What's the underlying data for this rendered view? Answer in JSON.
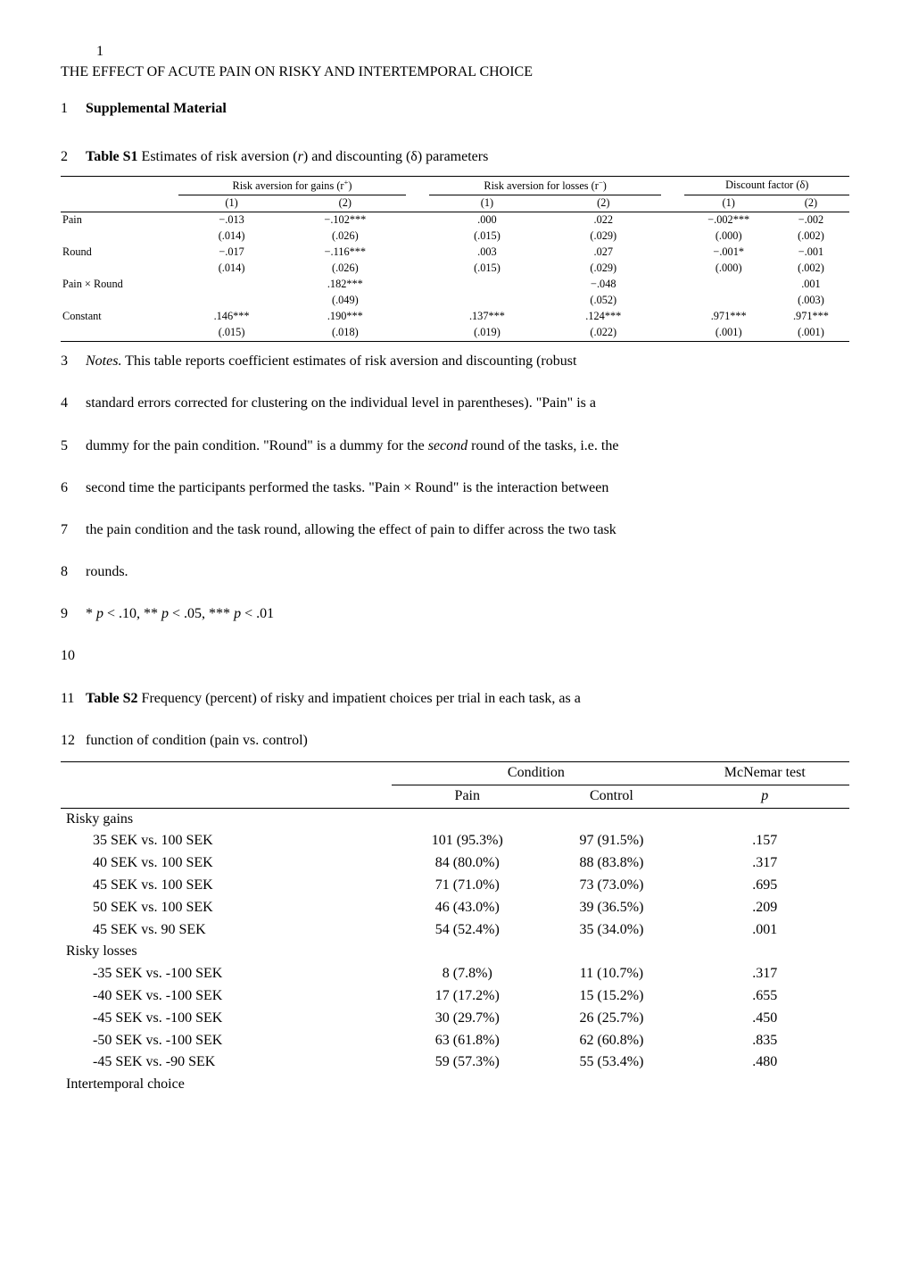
{
  "running_head": {
    "page_number": "1",
    "title": "THE EFFECT OF ACUTE PAIN ON RISKY AND INTERTEMPORAL CHOICE"
  },
  "heading": "Supplemental Material",
  "tableS1": {
    "caption_prefix": "Table S1",
    "caption_rest_a": " Estimates of risk aversion (",
    "caption_r": "r",
    "caption_rest_b": ") and discounting (δ) parameters",
    "group_headers": {
      "gains": "Risk aversion for gains (r",
      "gains_sup": "+",
      "gains_close": ")",
      "losses": "Risk aversion for losses (r",
      "losses_sup": "−",
      "losses_close": ")",
      "discount": "Discount factor (δ)"
    },
    "sub_headers": [
      "(1)",
      "(2)",
      "(1)",
      "(2)",
      "(1)",
      "(2)"
    ],
    "rows": [
      {
        "label": "Pain",
        "c": [
          "−.013",
          "−.102***",
          ".000",
          ".022",
          "−.002***",
          "−.002"
        ]
      },
      {
        "label": "",
        "c": [
          "(.014)",
          "(.026)",
          "(.015)",
          "(.029)",
          "(.000)",
          "(.002)"
        ]
      },
      {
        "label": "Round",
        "c": [
          "−.017",
          "−.116***",
          ".003",
          ".027",
          "−.001*",
          "−.001"
        ]
      },
      {
        "label": "",
        "c": [
          "(.014)",
          "(.026)",
          "(.015)",
          "(.029)",
          "(.000)",
          "(.002)"
        ]
      },
      {
        "label": "Pain × Round",
        "c": [
          "",
          ".182***",
          "",
          "−.048",
          "",
          ".001"
        ]
      },
      {
        "label": "",
        "c": [
          "",
          "(.049)",
          "",
          "(.052)",
          "",
          "(.003)"
        ]
      },
      {
        "label": "Constant",
        "c": [
          ".146***",
          ".190***",
          ".137***",
          ".124***",
          ".971***",
          ".971***"
        ]
      },
      {
        "label": "",
        "c": [
          "(.015)",
          "(.018)",
          "(.019)",
          "(.022)",
          "(.001)",
          "(.001)"
        ]
      }
    ]
  },
  "notes": {
    "l3a": "Notes.",
    "l3b": " This table reports coefficient estimates of risk aversion and discounting (robust",
    "l4": "standard errors corrected for clustering on the individual level in parentheses). \"Pain\" is a",
    "l5a": "dummy for the pain condition. \"Round\" is a dummy for the ",
    "l5b": "second",
    "l5c": " round of the tasks, i.e. the",
    "l6": "second time the participants performed the tasks. \"Pain × Round\" is the interaction between",
    "l7": "the pain condition and the task round, allowing the effect of pain to differ across the two task",
    "l8": "rounds.",
    "l9a": "* ",
    "l9b": "p",
    "l9c": " < .10, ** ",
    "l9d": "p",
    "l9e": " < .05, *** ",
    "l9f": "p",
    "l9g": " < .01"
  },
  "tableS2caption": {
    "l11_prefix": "Table S2",
    "l11_rest": " Frequency (percent) of risky and impatient choices per trial in each task, as a",
    "l12": "function of condition (pain vs. control)"
  },
  "tableS2": {
    "headers": {
      "condition": "Condition",
      "mcnemar": "McNemar test",
      "pain": "Pain",
      "control": "Control",
      "p": "p"
    },
    "sections": [
      {
        "label": "Risky gains",
        "rows": [
          {
            "label": "35 SEK vs. 100 SEK",
            "pain": "101 (95.3%)",
            "control": "97 (91.5%)",
            "p": ".157"
          },
          {
            "label": "40 SEK vs. 100 SEK",
            "pain": "84 (80.0%)",
            "control": "88 (83.8%)",
            "p": ".317"
          },
          {
            "label": "45 SEK vs. 100 SEK",
            "pain": "71 (71.0%)",
            "control": "73 (73.0%)",
            "p": ".695"
          },
          {
            "label": "50 SEK vs. 100 SEK",
            "pain": "46 (43.0%)",
            "control": "39 (36.5%)",
            "p": ".209"
          },
          {
            "label": "45 SEK vs. 90 SEK",
            "pain": "54 (52.4%)",
            "control": "35 (34.0%)",
            "p": ".001"
          }
        ]
      },
      {
        "label": "Risky losses",
        "rows": [
          {
            "label": "-35 SEK vs. -100 SEK",
            "pain": "8 (7.8%)",
            "control": "11 (10.7%)",
            "p": ".317"
          },
          {
            "label": "-40 SEK vs. -100 SEK",
            "pain": "17 (17.2%)",
            "control": "15 (15.2%)",
            "p": ".655"
          },
          {
            "label": "-45 SEK vs. -100 SEK",
            "pain": "30 (29.7%)",
            "control": "26 (25.7%)",
            "p": ".450"
          },
          {
            "label": "-50 SEK vs. -100 SEK",
            "pain": "63 (61.8%)",
            "control": "62 (60.8%)",
            "p": ".835"
          },
          {
            "label": "-45 SEK vs. -90 SEK",
            "pain": "59 (57.3%)",
            "control": "55 (53.4%)",
            "p": ".480"
          }
        ]
      },
      {
        "label": "Intertemporal choice",
        "rows": []
      }
    ]
  },
  "line_numbers": {
    "l1": "1",
    "l2": "2",
    "l3": "3",
    "l4": "4",
    "l5": "5",
    "l6": "6",
    "l7": "7",
    "l8": "8",
    "l9": "9",
    "l10": "10",
    "l11": "11",
    "l12": "12"
  }
}
